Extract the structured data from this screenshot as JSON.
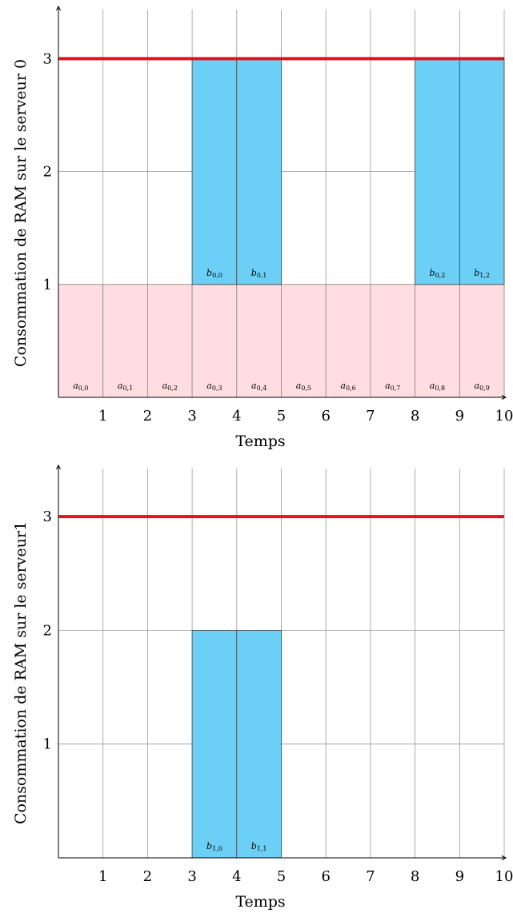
{
  "chart_data": [
    {
      "type": "bar",
      "title": "",
      "xlabel": "Temps",
      "ylabel": "Consommation de RAM sur le serveur 0",
      "xlim": [
        0,
        10
      ],
      "ylim": [
        0,
        3.5
      ],
      "xticks": [
        1,
        2,
        3,
        4,
        5,
        6,
        7,
        8,
        9,
        10
      ],
      "yticks": [
        1,
        2,
        3
      ],
      "capacity": 3,
      "grid": true,
      "colors": {
        "base": "#ffdde1",
        "task": "#6ccff6",
        "capacity": "#e8101a",
        "grid": "#999999"
      },
      "blocks": [
        {
          "label": "a",
          "sub": "0,0",
          "x0": 0,
          "x1": 1,
          "y0": 0,
          "y1": 1,
          "kind": "base"
        },
        {
          "label": "a",
          "sub": "0,1",
          "x0": 1,
          "x1": 2,
          "y0": 0,
          "y1": 1,
          "kind": "base"
        },
        {
          "label": "a",
          "sub": "0,2",
          "x0": 2,
          "x1": 3,
          "y0": 0,
          "y1": 1,
          "kind": "base"
        },
        {
          "label": "a",
          "sub": "0,3",
          "x0": 3,
          "x1": 4,
          "y0": 0,
          "y1": 1,
          "kind": "base"
        },
        {
          "label": "a",
          "sub": "0,4",
          "x0": 4,
          "x1": 5,
          "y0": 0,
          "y1": 1,
          "kind": "base"
        },
        {
          "label": "a",
          "sub": "0,5",
          "x0": 5,
          "x1": 6,
          "y0": 0,
          "y1": 1,
          "kind": "base"
        },
        {
          "label": "a",
          "sub": "0,6",
          "x0": 6,
          "x1": 7,
          "y0": 0,
          "y1": 1,
          "kind": "base"
        },
        {
          "label": "a",
          "sub": "0,7",
          "x0": 7,
          "x1": 8,
          "y0": 0,
          "y1": 1,
          "kind": "base"
        },
        {
          "label": "a",
          "sub": "0,8",
          "x0": 8,
          "x1": 9,
          "y0": 0,
          "y1": 1,
          "kind": "base"
        },
        {
          "label": "a",
          "sub": "0,9",
          "x0": 9,
          "x1": 10,
          "y0": 0,
          "y1": 1,
          "kind": "base"
        },
        {
          "label": "b",
          "sub": "0,0",
          "x0": 3,
          "x1": 4,
          "y0": 1,
          "y1": 3,
          "kind": "task"
        },
        {
          "label": "b",
          "sub": "0,1",
          "x0": 4,
          "x1": 5,
          "y0": 1,
          "y1": 3,
          "kind": "task"
        },
        {
          "label": "b",
          "sub": "0,2",
          "x0": 8,
          "x1": 9,
          "y0": 1,
          "y1": 3,
          "kind": "task"
        },
        {
          "label": "b",
          "sub": "1,2",
          "x0": 9,
          "x1": 10,
          "y0": 1,
          "y1": 3,
          "kind": "task"
        }
      ]
    },
    {
      "type": "bar",
      "title": "",
      "xlabel": "Temps",
      "ylabel": "Consommation de RAM sur le serveur1",
      "xlim": [
        0,
        10
      ],
      "ylim": [
        0,
        3.5
      ],
      "xticks": [
        1,
        2,
        3,
        4,
        5,
        6,
        7,
        8,
        9,
        10
      ],
      "yticks": [
        1,
        2,
        3
      ],
      "capacity": 3,
      "grid": true,
      "colors": {
        "base": "#ffdde1",
        "task": "#6ccff6",
        "capacity": "#e8101a",
        "grid": "#999999"
      },
      "blocks": [
        {
          "label": "b",
          "sub": "1,0",
          "x0": 3,
          "x1": 4,
          "y0": 0,
          "y1": 2,
          "kind": "task"
        },
        {
          "label": "b",
          "sub": "1,1",
          "x0": 4,
          "x1": 5,
          "y0": 0,
          "y1": 2,
          "kind": "task"
        }
      ]
    }
  ]
}
